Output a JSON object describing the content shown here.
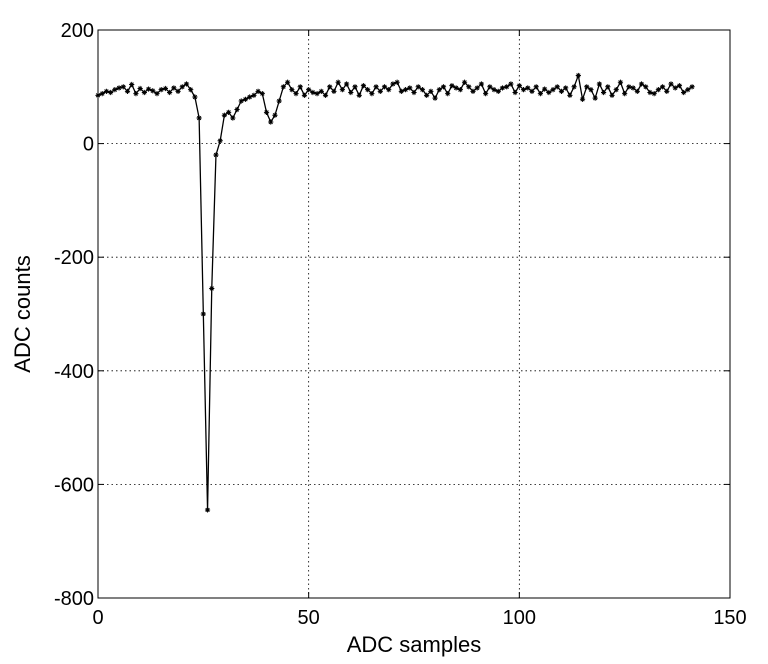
{
  "chart_data": {
    "type": "line",
    "title": "",
    "xlabel": "ADC samples",
    "ylabel": "ADC counts",
    "xlim": [
      0,
      150
    ],
    "ylim": [
      -800,
      200
    ],
    "xticks": [
      0,
      50,
      100,
      150
    ],
    "yticks": [
      -800,
      -600,
      -400,
      -200,
      0,
      200
    ],
    "xtick_labels": [
      "0",
      "50",
      "100",
      "150"
    ],
    "ytick_labels": [
      "-800",
      "-600",
      "-400",
      "-200",
      "0",
      "200"
    ],
    "grid": true,
    "legend": "none",
    "marker": "asterisk",
    "line_color": "#000000",
    "series": [
      {
        "x": [
          0,
          1,
          2,
          3,
          4,
          5,
          6,
          7,
          8,
          9,
          10,
          11,
          12,
          13,
          14,
          15,
          16,
          17,
          18,
          19,
          20,
          21,
          22,
          23,
          24,
          25,
          26,
          27,
          28,
          29,
          30,
          31,
          32,
          33,
          34,
          35,
          36,
          37,
          38,
          39,
          40,
          41,
          42,
          43,
          44,
          45,
          46,
          47,
          48,
          49,
          50,
          51,
          52,
          53,
          54,
          55,
          56,
          57,
          58,
          59,
          60,
          61,
          62,
          63,
          64,
          65,
          66,
          67,
          68,
          69,
          70,
          71,
          72,
          73,
          74,
          75,
          76,
          77,
          78,
          79,
          80,
          81,
          82,
          83,
          84,
          85,
          86,
          87,
          88,
          89,
          90,
          91,
          92,
          93,
          94,
          95,
          96,
          97,
          98,
          99,
          100,
          101,
          102,
          103,
          104,
          105,
          106,
          107,
          108,
          109,
          110,
          111,
          112,
          113,
          114,
          115,
          116,
          117,
          118,
          119,
          120,
          121,
          122,
          123,
          124,
          125,
          126,
          127,
          128,
          129,
          130,
          131,
          132,
          133,
          134,
          135,
          136,
          137,
          138,
          139,
          140,
          141
        ],
        "values": [
          85,
          88,
          92,
          90,
          95,
          98,
          100,
          92,
          104,
          88,
          97,
          90,
          96,
          93,
          88,
          95,
          97,
          90,
          98,
          92,
          100,
          105,
          95,
          82,
          45,
          -300,
          -645,
          -255,
          -20,
          5,
          50,
          55,
          45,
          60,
          75,
          78,
          82,
          85,
          92,
          88,
          55,
          38,
          50,
          75,
          100,
          108,
          95,
          88,
          100,
          85,
          95,
          90,
          88,
          92,
          85,
          100,
          92,
          108,
          95,
          105,
          90,
          100,
          85,
          102,
          95,
          88,
          100,
          92,
          100,
          95,
          105,
          108,
          92,
          95,
          98,
          90,
          100,
          95,
          85,
          92,
          80,
          95,
          100,
          88,
          102,
          98,
          95,
          108,
          100,
          92,
          98,
          105,
          88,
          100,
          95,
          92,
          98,
          100,
          105,
          90,
          102,
          95,
          98,
          92,
          100,
          88,
          96,
          90,
          95,
          100,
          92,
          98,
          85,
          100,
          120,
          78,
          100,
          95,
          80,
          105,
          90,
          100,
          85,
          95,
          108,
          88,
          100,
          98,
          92,
          105,
          100,
          90,
          88,
          95,
          100,
          92,
          105,
          98,
          102,
          90,
          95,
          100
        ]
      }
    ]
  }
}
